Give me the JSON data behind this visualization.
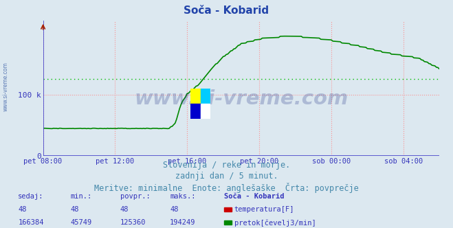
{
  "title": "Soča - Kobarid",
  "title_color": "#2244aa",
  "title_fontsize": 11,
  "bg_color": "#dce8f0",
  "plot_bg_color": "#dce8f0",
  "grid_color": "#ff8888",
  "flow_color": "#008800",
  "temp_color": "#cc0000",
  "avg_color": "#00bb00",
  "avg_value": 125360,
  "temp_value": 48,
  "ymin": 0,
  "ymax": 220000,
  "ylabel_ticks": [
    0,
    100000
  ],
  "ylabel_labels": [
    "0",
    "100 k"
  ],
  "xtick_labels": [
    "pet 08:00",
    "pet 12:00",
    "pet 16:00",
    "pet 20:00",
    "sob 00:00",
    "sob 04:00"
  ],
  "xtick_positions": [
    0,
    48,
    96,
    144,
    192,
    240
  ],
  "n_points": 265,
  "subtitle_line1": "Slovenija / reke in morje.",
  "subtitle_line2": "zadnji dan / 5 minut.",
  "subtitle_line3": "Meritve: minimalne  Enote: anglešaške  Črta: povprečje",
  "subtitle_color": "#4488aa",
  "subtitle_fontsize": 8.5,
  "table_headers": [
    "sedaj:",
    "min.:",
    "povpr.:",
    "maks.:",
    "Soča - Kobarid"
  ],
  "temp_row": [
    "48",
    "48",
    "48",
    "48"
  ],
  "flow_row": [
    "166384",
    "45749",
    "125360",
    "194249"
  ],
  "table_color": "#3333bb",
  "legend_temp": "temperatura[F]",
  "legend_flow": "pretok[čevelj3/min]",
  "watermark": "www.si-vreme.com",
  "watermark_color": "#223388",
  "watermark_alpha": 0.25,
  "axis_color": "#4444cc",
  "spine_color": "#4444cc"
}
